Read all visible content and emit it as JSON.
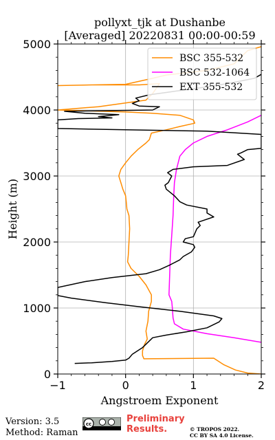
{
  "title_line1": "pollyxt_tjk at Dushanbe",
  "title_line2": "[Averaged] 20220831 00:00-00:59",
  "version": "Version: 3.5",
  "method": "Method: Raman",
  "preliminary": [
    "Preliminary",
    "Results."
  ],
  "copyright": [
    "© TROPOS 2022.",
    "CC BY SA 4.0 License."
  ],
  "license_badge": "cc by-sa",
  "chart_data": {
    "type": "line",
    "xlabel": "Angstroem Exponent",
    "ylabel": "Height (m)",
    "xlim": [
      -1,
      2
    ],
    "ylim": [
      0,
      5000
    ],
    "xticks": [
      -1,
      0,
      1,
      2
    ],
    "yticks": [
      0,
      1000,
      2000,
      3000,
      4000,
      5000
    ],
    "grid": true,
    "legend_position": "top-right",
    "series": [
      {
        "name": "BSC 355-532",
        "color": "#ff8c00",
        "points": [
          [
            2.0,
            0
          ],
          [
            1.8,
            15
          ],
          [
            1.62,
            60
          ],
          [
            1.45,
            140
          ],
          [
            1.3,
            240
          ],
          [
            0.27,
            230
          ],
          [
            0.25,
            280
          ],
          [
            0.25,
            350
          ],
          [
            0.28,
            450
          ],
          [
            0.32,
            530
          ],
          [
            0.3,
            650
          ],
          [
            0.33,
            800
          ],
          [
            0.34,
            950
          ],
          [
            0.38,
            1100
          ],
          [
            0.38,
            1200
          ],
          [
            0.3,
            1350
          ],
          [
            0.2,
            1480
          ],
          [
            0.08,
            1600
          ],
          [
            0.03,
            1700
          ],
          [
            0.04,
            1800
          ],
          [
            0.05,
            2000
          ],
          [
            0.06,
            2200
          ],
          [
            0.05,
            2400
          ],
          [
            0.02,
            2500
          ],
          [
            0.01,
            2600
          ],
          [
            0.0,
            2700
          ],
          [
            -0.04,
            2800
          ],
          [
            -0.07,
            2900
          ],
          [
            -0.1,
            3000
          ],
          [
            -0.07,
            3100
          ],
          [
            0.0,
            3200
          ],
          [
            0.08,
            3300
          ],
          [
            0.18,
            3400
          ],
          [
            0.3,
            3500
          ],
          [
            0.35,
            3550
          ],
          [
            0.38,
            3650
          ],
          [
            0.6,
            3700
          ],
          [
            0.8,
            3750
          ],
          [
            1.02,
            3800
          ],
          [
            1.0,
            3850
          ],
          [
            0.8,
            3920
          ],
          [
            0.4,
            3950
          ],
          [
            0.0,
            3970
          ],
          [
            -1.0,
            4000
          ],
          [
            -0.4,
            4050
          ],
          [
            0.3,
            4150
          ],
          [
            0.4,
            4250
          ],
          [
            0.5,
            4400
          ],
          [
            0.2,
            4380
          ],
          [
            -0.5,
            4380
          ],
          [
            -1.0,
            4370
          ],
          [
            0.0,
            4390
          ],
          [
            0.4,
            4480
          ],
          [
            0.6,
            4530
          ],
          [
            1.2,
            4600
          ],
          [
            1.6,
            4700
          ],
          [
            1.8,
            4900
          ],
          [
            2.0,
            4960
          ]
        ]
      },
      {
        "name": "BSC 532-1064",
        "color": "#ff00ff",
        "points": [
          [
            2.0,
            480
          ],
          [
            1.6,
            550
          ],
          [
            1.2,
            610
          ],
          [
            0.85,
            680
          ],
          [
            0.72,
            760
          ],
          [
            0.7,
            850
          ],
          [
            0.69,
            1000
          ],
          [
            0.68,
            1100
          ],
          [
            0.64,
            1200
          ],
          [
            0.65,
            1500
          ],
          [
            0.66,
            1800
          ],
          [
            0.68,
            2100
          ],
          [
            0.7,
            2400
          ],
          [
            0.71,
            2700
          ],
          [
            0.72,
            2900
          ],
          [
            0.75,
            3100
          ],
          [
            0.8,
            3300
          ],
          [
            0.88,
            3400
          ],
          [
            1.0,
            3500
          ],
          [
            1.2,
            3600
          ],
          [
            1.5,
            3700
          ],
          [
            1.8,
            3820
          ],
          [
            2.0,
            3920
          ]
        ]
      },
      {
        "name": "EXT 355-532",
        "color": "#000000",
        "points": [
          [
            -0.75,
            160
          ],
          [
            -0.5,
            170
          ],
          [
            -0.2,
            190
          ],
          [
            0.0,
            210
          ],
          [
            0.05,
            240
          ],
          [
            0.1,
            300
          ],
          [
            0.25,
            400
          ],
          [
            0.4,
            550
          ],
          [
            0.6,
            590
          ],
          [
            0.9,
            640
          ],
          [
            1.2,
            700
          ],
          [
            1.38,
            790
          ],
          [
            1.42,
            840
          ],
          [
            1.3,
            880
          ],
          [
            0.8,
            950
          ],
          [
            0.2,
            1020
          ],
          [
            -0.3,
            1080
          ],
          [
            -0.8,
            1150
          ],
          [
            -1.0,
            1190
          ],
          [
            -1.0,
            1310
          ],
          [
            -0.6,
            1400
          ],
          [
            -0.2,
            1460
          ],
          [
            0.3,
            1520
          ],
          [
            0.5,
            1580
          ],
          [
            0.65,
            1650
          ],
          [
            0.8,
            1730
          ],
          [
            0.85,
            1780
          ],
          [
            0.97,
            1850
          ],
          [
            1.02,
            1920
          ],
          [
            1.0,
            1960
          ],
          [
            0.85,
            2000
          ],
          [
            0.88,
            2050
          ],
          [
            1.0,
            2080
          ],
          [
            1.05,
            2200
          ],
          [
            1.1,
            2250
          ],
          [
            1.07,
            2300
          ],
          [
            1.3,
            2380
          ],
          [
            1.2,
            2440
          ],
          [
            1.2,
            2500
          ],
          [
            0.9,
            2560
          ],
          [
            0.8,
            2610
          ],
          [
            0.72,
            2700
          ],
          [
            0.6,
            2800
          ],
          [
            0.58,
            2860
          ],
          [
            0.63,
            2900
          ],
          [
            0.68,
            3000
          ],
          [
            0.62,
            3050
          ],
          [
            0.7,
            3100
          ],
          [
            1.0,
            3140
          ],
          [
            1.5,
            3160
          ],
          [
            1.75,
            3250
          ],
          [
            1.65,
            3330
          ],
          [
            1.7,
            3350
          ],
          [
            1.8,
            3400
          ],
          [
            2.0,
            3420
          ],
          [
            2.0,
            3630
          ],
          [
            1.2,
            3680
          ],
          [
            0.0,
            3700
          ],
          [
            -1.0,
            3720
          ],
          [
            -1.0,
            3850
          ],
          [
            -0.7,
            3870
          ],
          [
            -0.2,
            3880
          ],
          [
            -0.4,
            3900
          ],
          [
            -0.1,
            3930
          ],
          [
            -0.6,
            3950
          ],
          [
            -0.9,
            3980
          ],
          [
            0.4,
            4000
          ],
          [
            0.5,
            4050
          ],
          [
            0.2,
            4060
          ],
          [
            0.1,
            4100
          ],
          [
            0.2,
            4140
          ],
          [
            0.15,
            4180
          ],
          [
            0.35,
            4230
          ],
          [
            0.7,
            4280
          ],
          [
            1.2,
            4350
          ],
          [
            1.5,
            4400
          ],
          [
            1.9,
            4480
          ],
          [
            2.0,
            4540
          ]
        ]
      }
    ]
  }
}
